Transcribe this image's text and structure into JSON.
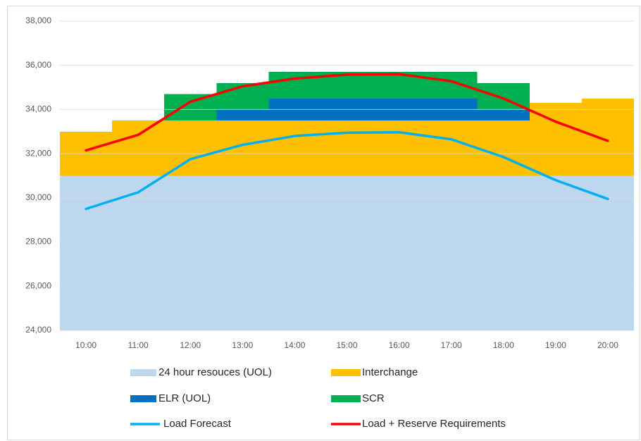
{
  "chart_data": {
    "type": "area",
    "categories": [
      "10:00",
      "11:00",
      "12:00",
      "13:00",
      "14:00",
      "15:00",
      "16:00",
      "17:00",
      "18:00",
      "19:00",
      "20:00"
    ],
    "series": [
      {
        "name": "24 hour resouces (UOL)",
        "type": "area",
        "color": "#bdd7ee",
        "values": [
          31000,
          31000,
          31000,
          31000,
          31000,
          31000,
          31000,
          31000,
          31000,
          31000,
          31000
        ]
      },
      {
        "name": "Interchange",
        "type": "area",
        "color": "#ffc000",
        "values": [
          2000,
          2500,
          2500,
          2500,
          2500,
          2500,
          2500,
          2500,
          2500,
          3300,
          3500
        ]
      },
      {
        "name": "ELR (UOL)",
        "type": "area",
        "color": "#0070c0",
        "values": [
          0,
          0,
          0,
          500,
          1000,
          1000,
          1000,
          1000,
          500,
          0,
          0
        ]
      },
      {
        "name": "SCR",
        "type": "area",
        "color": "#00b050",
        "values": [
          0,
          0,
          1200,
          1200,
          1200,
          1200,
          1200,
          1200,
          1200,
          0,
          0
        ]
      },
      {
        "name": "Load Forecast",
        "type": "line",
        "color": "#00b0f0",
        "values": [
          29500,
          30250,
          31750,
          32400,
          32800,
          32950,
          32970,
          32650,
          31850,
          30800,
          29950
        ]
      },
      {
        "name": "Load + Reserve Requirements",
        "type": "line",
        "color": "#ff0000",
        "values": [
          32150,
          32850,
          34350,
          35050,
          35400,
          35580,
          35600,
          35280,
          34500,
          33450,
          32580
        ]
      }
    ],
    "ylim": [
      24000,
      38000
    ],
    "yticks": [
      {
        "value": 24000,
        "label": "24,000"
      },
      {
        "value": 26000,
        "label": "26,000"
      },
      {
        "value": 28000,
        "label": "28,000"
      },
      {
        "value": 30000,
        "label": "30,000"
      },
      {
        "value": 32000,
        "label": "32,000"
      },
      {
        "value": 34000,
        "label": "34,000"
      },
      {
        "value": 36000,
        "label": "36,000"
      },
      {
        "value": 38000,
        "label": "38,000"
      }
    ],
    "grid": true
  }
}
